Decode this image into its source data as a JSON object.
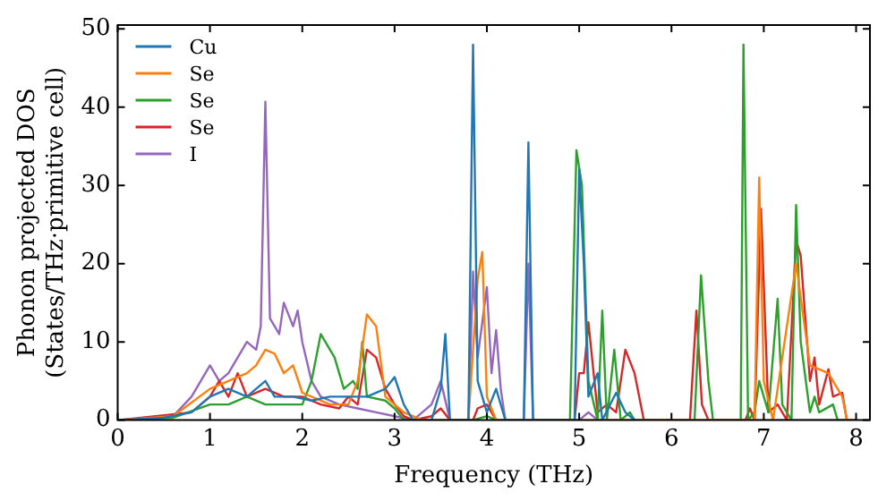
{
  "chart_data": {
    "type": "line",
    "xlabel": "Frequency (THz)",
    "ylabel": "Phonon projected DOS\n(States/THz·primitive cell)",
    "xlim": [
      0,
      8.15
    ],
    "ylim": [
      0,
      50.5
    ],
    "xticks": [
      0,
      1,
      2,
      3,
      4,
      5,
      6,
      7,
      8
    ],
    "yticks": [
      0,
      10,
      20,
      30,
      40,
      50
    ],
    "grid": false,
    "legend": "top left",
    "marker": "none",
    "line_style": "solid",
    "series": [
      {
        "name": "Cu",
        "color": "#1f77b4",
        "x": [
          0,
          0.5,
          0.8,
          1,
          1.2,
          1.4,
          1.6,
          1.7,
          1.9,
          2.1,
          2.3,
          2.5,
          2.7,
          2.9,
          3,
          3.1,
          3.2,
          3.4,
          3.5,
          3.55,
          3.6,
          3.8,
          3.85,
          3.9,
          4,
          4.1,
          4.2,
          4.4,
          4.45,
          4.5,
          4.95,
          5,
          5.05,
          5.1,
          5.2,
          5.25,
          5.4,
          5.5,
          5.6
        ],
        "values": [
          0,
          0.3,
          1,
          3,
          4,
          3,
          5,
          3,
          3,
          2.5,
          3,
          3,
          3,
          4,
          5.5,
          2,
          0,
          0,
          4,
          11,
          0,
          0,
          48,
          5,
          1,
          4,
          0,
          0,
          35.5,
          0,
          0,
          32,
          20,
          3,
          6,
          0,
          3.5,
          1,
          0
        ]
      },
      {
        "name": "Se",
        "color": "#ff7f0e",
        "x": [
          0,
          0.6,
          1,
          1.2,
          1.4,
          1.5,
          1.6,
          1.7,
          1.8,
          1.9,
          2,
          2.3,
          2.5,
          2.6,
          2.7,
          2.8,
          2.9,
          3.1,
          3.3,
          3.8,
          3.9,
          3.95,
          4,
          4.1,
          6.9,
          6.95,
          7,
          7.1,
          7.35,
          7.5,
          7.7,
          7.85,
          7.9,
          8
        ],
        "values": [
          0,
          0.5,
          4,
          5,
          6,
          7,
          9,
          8.5,
          6,
          7,
          3.5,
          2,
          2,
          5,
          13.5,
          12,
          3,
          1,
          0,
          0,
          18,
          21.5,
          3,
          0,
          0,
          31,
          5,
          0,
          20,
          7,
          6,
          3,
          0,
          0
        ]
      },
      {
        "name": "Se",
        "color": "#2ca02c",
        "x": [
          0,
          0.6,
          1,
          1.2,
          1.4,
          1.6,
          1.8,
          2,
          2.1,
          2.2,
          2.35,
          2.45,
          2.55,
          2.6,
          2.65,
          2.7,
          2.9,
          3,
          3.1,
          3.85,
          4,
          4.1,
          4.9,
          4.97,
          5.03,
          5.1,
          5.2,
          5.25,
          5.3,
          5.38,
          5.45,
          5.55,
          5.6,
          6.25,
          6.32,
          6.4,
          6.45,
          6.75,
          6.78,
          6.83,
          6.9,
          6.95,
          7.05,
          7.15,
          7.2,
          7.3,
          7.35,
          7.4,
          7.5,
          7.55,
          7.6,
          7.75,
          7.8,
          8
        ],
        "values": [
          0,
          0.3,
          2,
          2,
          3,
          2,
          2,
          2,
          5,
          11,
          8,
          4,
          5,
          4,
          10,
          3,
          2.5,
          1.5,
          0,
          0,
          0.5,
          0,
          0,
          34.5,
          30,
          5,
          0,
          14,
          0,
          9,
          0,
          1,
          0,
          0,
          18.5,
          5,
          0,
          0,
          48,
          0,
          1,
          5,
          1,
          15.5,
          2,
          0,
          27.5,
          10,
          1,
          3,
          1,
          2,
          0,
          0
        ]
      },
      {
        "name": "Se",
        "color": "#d62728",
        "x": [
          0,
          0.8,
          1,
          1.1,
          1.2,
          1.3,
          1.4,
          1.6,
          1.8,
          2,
          2.2,
          2.4,
          2.5,
          2.6,
          2.7,
          2.8,
          2.9,
          3,
          3.1,
          3.2,
          3.4,
          3.5,
          3.6,
          3.85,
          3.9,
          4,
          4.1,
          4.95,
          5,
          5.05,
          5.1,
          5.2,
          5.3,
          5.4,
          5.5,
          5.6,
          5.7,
          6.2,
          6.27,
          6.33,
          6.4,
          6.8,
          6.85,
          6.9,
          6.97,
          7.05,
          7.15,
          7.25,
          7.35,
          7.4,
          7.5,
          7.55,
          7.6,
          7.7,
          7.75,
          7.85,
          7.9,
          8
        ],
        "values": [
          0,
          1,
          3,
          5,
          3,
          6,
          3,
          4,
          3,
          3,
          2,
          1.5,
          3,
          2,
          9,
          8,
          4,
          2,
          0.5,
          0,
          0.5,
          1.5,
          0,
          0,
          1.5,
          2,
          0,
          0,
          6,
          6,
          12.5,
          1,
          2,
          1,
          9,
          6,
          0,
          0,
          14,
          2,
          0,
          0,
          1.5,
          0,
          27,
          1,
          2,
          0,
          23,
          21,
          5,
          8,
          2,
          6.5,
          3,
          3.5,
          0,
          0
        ]
      },
      {
        "name": "I",
        "color": "#9467bd",
        "x": [
          0,
          0.6,
          0.8,
          0.9,
          1,
          1.1,
          1.2,
          1.3,
          1.4,
          1.5,
          1.55,
          1.6,
          1.65,
          1.75,
          1.8,
          1.9,
          1.95,
          2,
          2.1,
          2.2,
          2.4,
          2.6,
          2.8,
          3,
          3.2,
          3.4,
          3.5,
          3.6,
          3.8,
          3.85,
          3.9,
          4,
          4.05,
          4.1,
          4.15,
          4.2,
          4.4,
          4.45,
          4.5,
          5,
          5.1,
          5.2,
          8
        ],
        "values": [
          0,
          0.5,
          3,
          5,
          7,
          5,
          6,
          8,
          10,
          9,
          12,
          40.7,
          13,
          11,
          15,
          12,
          14,
          10,
          5,
          3,
          2,
          1.5,
          1,
          0.5,
          0,
          2,
          5,
          0,
          0,
          19,
          8,
          17,
          6,
          11.5,
          4,
          0,
          0,
          20,
          0,
          0,
          1,
          0,
          0
        ]
      }
    ]
  }
}
